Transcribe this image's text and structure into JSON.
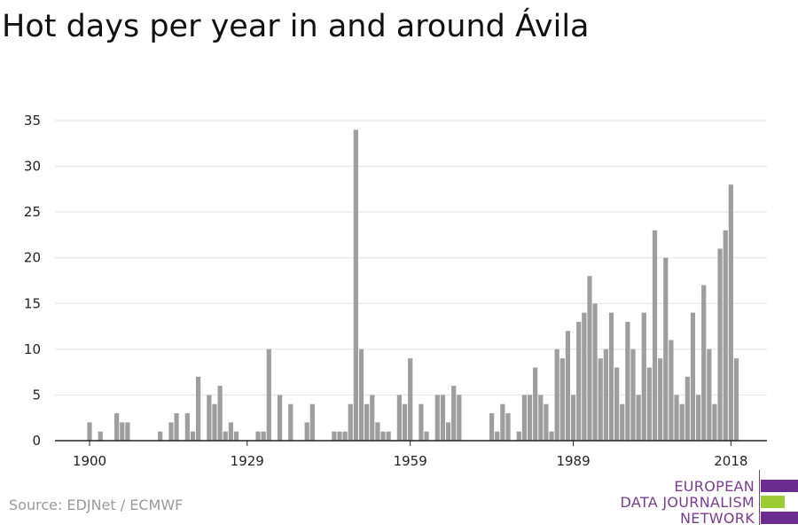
{
  "title": "Hot days per year in and around Ávila",
  "source": "Source: EDJNet / ECMWF",
  "logo": {
    "lines": [
      "EUROPEAN",
      "DATA JOURNALISM",
      "NETWORK"
    ],
    "colors": {
      "purple": "#6b2c91",
      "green": "#9acd32"
    }
  },
  "colors": {
    "bar": "#9e9e9e",
    "grid": "#e2e2e2",
    "axis": "#222222"
  },
  "chart_data": {
    "type": "bar",
    "title": "Hot days per year in and around Ávila",
    "xlabel": "",
    "ylabel": "",
    "ylim": [
      0,
      35
    ],
    "yticks": [
      0,
      5,
      10,
      15,
      20,
      25,
      30,
      35
    ],
    "xticks": [
      1900,
      1929,
      1959,
      1989,
      2018
    ],
    "grid": true,
    "categories": [
      1900,
      1901,
      1902,
      1903,
      1904,
      1905,
      1906,
      1907,
      1908,
      1909,
      1910,
      1911,
      1912,
      1913,
      1914,
      1915,
      1916,
      1917,
      1918,
      1919,
      1920,
      1921,
      1922,
      1923,
      1924,
      1925,
      1926,
      1927,
      1928,
      1929,
      1930,
      1931,
      1932,
      1933,
      1934,
      1935,
      1936,
      1937,
      1938,
      1939,
      1940,
      1941,
      1942,
      1943,
      1944,
      1945,
      1946,
      1947,
      1948,
      1949,
      1950,
      1951,
      1952,
      1953,
      1954,
      1955,
      1956,
      1957,
      1958,
      1959,
      1960,
      1961,
      1962,
      1963,
      1964,
      1965,
      1966,
      1967,
      1968,
      1969,
      1970,
      1971,
      1972,
      1973,
      1974,
      1975,
      1976,
      1977,
      1978,
      1979,
      1980,
      1981,
      1982,
      1983,
      1984,
      1985,
      1986,
      1987,
      1988,
      1989,
      1990,
      1991,
      1992,
      1993,
      1994,
      1995,
      1996,
      1997,
      1998,
      1999,
      2000,
      2001,
      2002,
      2003,
      2004,
      2005,
      2006,
      2007,
      2008,
      2009,
      2010,
      2011,
      2012,
      2013,
      2014,
      2015,
      2016,
      2017,
      2018,
      2019
    ],
    "values": [
      2,
      0,
      1,
      0,
      0,
      3,
      2,
      2,
      0,
      0,
      0,
      0,
      0,
      1,
      0,
      2,
      3,
      0,
      3,
      1,
      7,
      0,
      5,
      4,
      6,
      1,
      2,
      1,
      0,
      0,
      0,
      1,
      1,
      10,
      0,
      5,
      0,
      4,
      0,
      0,
      2,
      4,
      0,
      0,
      0,
      1,
      1,
      1,
      4,
      34,
      10,
      4,
      5,
      2,
      1,
      1,
      0,
      5,
      4,
      9,
      0,
      4,
      1,
      0,
      5,
      5,
      2,
      6,
      5,
      0,
      0,
      0,
      0,
      0,
      3,
      1,
      4,
      3,
      0,
      1,
      5,
      5,
      8,
      5,
      4,
      1,
      10,
      9,
      12,
      5,
      13,
      14,
      18,
      15,
      9,
      10,
      14,
      8,
      4,
      13,
      10,
      5,
      14,
      8,
      23,
      9,
      20,
      11,
      5,
      4,
      7,
      14,
      5,
      17,
      10,
      4,
      21,
      23,
      28,
      9
    ]
  }
}
